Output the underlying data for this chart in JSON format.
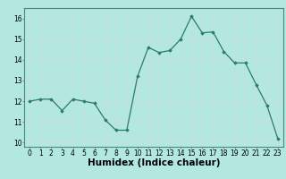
{
  "x": [
    0,
    1,
    2,
    3,
    4,
    5,
    6,
    7,
    8,
    9,
    10,
    11,
    12,
    13,
    14,
    15,
    16,
    17,
    18,
    19,
    20,
    21,
    22,
    23
  ],
  "y": [
    12.0,
    12.1,
    12.1,
    11.55,
    12.1,
    12.0,
    11.9,
    11.1,
    10.6,
    10.6,
    13.2,
    14.6,
    14.35,
    14.45,
    15.0,
    16.1,
    15.3,
    15.35,
    14.4,
    13.85,
    13.85,
    12.8,
    11.8,
    10.2
  ],
  "line_color": "#2d7a6e",
  "marker_color": "#2d7a6e",
  "bg_color": "#b2e8e0",
  "grid_color": "#c8ddd9",
  "xlabel": "Humidex (Indice chaleur)",
  "ylim": [
    9.8,
    16.5
  ],
  "xlim": [
    -0.5,
    23.5
  ],
  "yticks": [
    10,
    11,
    12,
    13,
    14,
    15,
    16
  ],
  "xticks": [
    0,
    1,
    2,
    3,
    4,
    5,
    6,
    7,
    8,
    9,
    10,
    11,
    12,
    13,
    14,
    15,
    16,
    17,
    18,
    19,
    20,
    21,
    22,
    23
  ],
  "tick_fontsize": 5.5,
  "xlabel_fontsize": 7.5
}
